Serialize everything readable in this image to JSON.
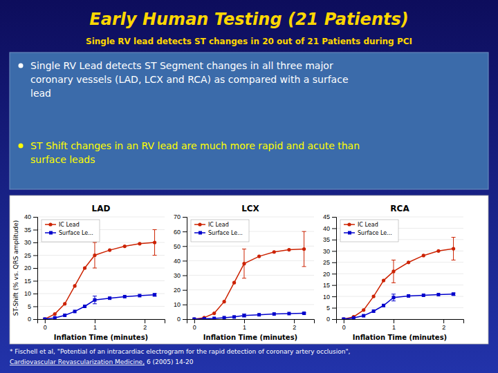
{
  "title": "Early Human Testing (21 Patients)",
  "subtitle": "Single RV lead detects ST changes in 20 out of 21 Patients during PCI",
  "annotations": [
    {
      "text": "Single RV Lead detects ST Segment changes in all three major\ncoronary vessels (LAD, LCX and RCA) as compared with a surface\nlead",
      "color": "#FFFFFF"
    },
    {
      "text": "ST Shift changes in an RV lead are much more rapid and acute than\nsurface leads",
      "color": "#FFFF00"
    }
  ],
  "ylabel": "ST-Shift (% vs. QRS amplitude)",
  "footnote": [
    "* Fischell et al, \"Potential of an intracardiac electrogram for the rapid detection of coronary artery occlusion\",",
    "Cardiovascular Revascularization Medicine,",
    " 6 (2005) 14-20"
  ],
  "chart_data": [
    {
      "type": "line",
      "title": "LAD",
      "xlabel": "Inflation Time (minutes)",
      "x": [
        0,
        0.2,
        0.4,
        0.6,
        0.8,
        1.0,
        1.3,
        1.6,
        1.9,
        2.2
      ],
      "series": [
        {
          "name": "IC Lead",
          "color": "#CC2200",
          "marker": "circle",
          "values": [
            0,
            2,
            6,
            13,
            20,
            25,
            27,
            28.5,
            29.5,
            30
          ],
          "errors": [
            null,
            null,
            null,
            null,
            null,
            5,
            null,
            null,
            null,
            5
          ]
        },
        {
          "name": "Surface Le...",
          "color": "#0000CC",
          "marker": "square",
          "values": [
            0,
            0.5,
            1.5,
            3,
            5,
            7.5,
            8.2,
            8.8,
            9.2,
            9.5
          ],
          "errors": [
            null,
            null,
            null,
            null,
            null,
            1.5,
            null,
            null,
            null,
            0.5
          ]
        }
      ],
      "xlim": [
        -0.15,
        2.4
      ],
      "xticks": [
        0,
        1,
        2
      ],
      "ylim": [
        0,
        40
      ],
      "yticks": [
        0,
        5,
        10,
        15,
        20,
        25,
        30,
        35,
        40
      ],
      "grid": true,
      "legend": "upper left"
    },
    {
      "type": "line",
      "title": "LCX",
      "xlabel": "Inflation Time (minutes)",
      "x": [
        0,
        0.2,
        0.4,
        0.6,
        0.8,
        1.0,
        1.3,
        1.6,
        1.9,
        2.2
      ],
      "series": [
        {
          "name": "IC Lead",
          "color": "#CC2200",
          "marker": "circle",
          "values": [
            0,
            1,
            4,
            12,
            25,
            38,
            43,
            46,
            47.5,
            48
          ],
          "errors": [
            null,
            null,
            null,
            null,
            null,
            10,
            null,
            null,
            null,
            12
          ]
        },
        {
          "name": "Surface Le...",
          "color": "#0000CC",
          "marker": "square",
          "values": [
            0,
            0.2,
            0.5,
            1,
            1.5,
            2.5,
            3,
            3.5,
            3.8,
            4
          ],
          "errors": [
            null,
            null,
            null,
            null,
            null,
            1,
            null,
            null,
            null,
            0.5
          ]
        }
      ],
      "xlim": [
        -0.15,
        2.4
      ],
      "xticks": [
        0,
        1,
        2
      ],
      "ylim": [
        0,
        70
      ],
      "yticks": [
        0,
        10,
        20,
        30,
        40,
        50,
        60,
        70
      ],
      "grid": true,
      "legend": "upper left"
    },
    {
      "type": "line",
      "title": "RCA",
      "xlabel": "Inflation Time (minutes)",
      "x": [
        0,
        0.2,
        0.4,
        0.6,
        0.8,
        1.0,
        1.3,
        1.6,
        1.9,
        2.2
      ],
      "series": [
        {
          "name": "IC Lead",
          "color": "#CC2200",
          "marker": "circle",
          "values": [
            0,
            1,
            4,
            10,
            17,
            21,
            25,
            28,
            30,
            31
          ],
          "errors": [
            null,
            null,
            null,
            null,
            null,
            5,
            null,
            null,
            null,
            5
          ]
        },
        {
          "name": "Surface Le...",
          "color": "#0000CC",
          "marker": "square",
          "values": [
            0,
            0.5,
            1.5,
            3.5,
            6,
            9.5,
            10.2,
            10.5,
            10.8,
            11
          ],
          "errors": [
            null,
            null,
            null,
            null,
            null,
            1.5,
            null,
            null,
            null,
            0.5
          ]
        }
      ],
      "xlim": [
        -0.15,
        2.4
      ],
      "xticks": [
        0,
        1,
        2
      ],
      "ylim": [
        0,
        45
      ],
      "yticks": [
        0,
        5,
        10,
        15,
        20,
        25,
        30,
        35,
        40,
        45
      ],
      "grid": true,
      "legend": "upper left"
    }
  ]
}
